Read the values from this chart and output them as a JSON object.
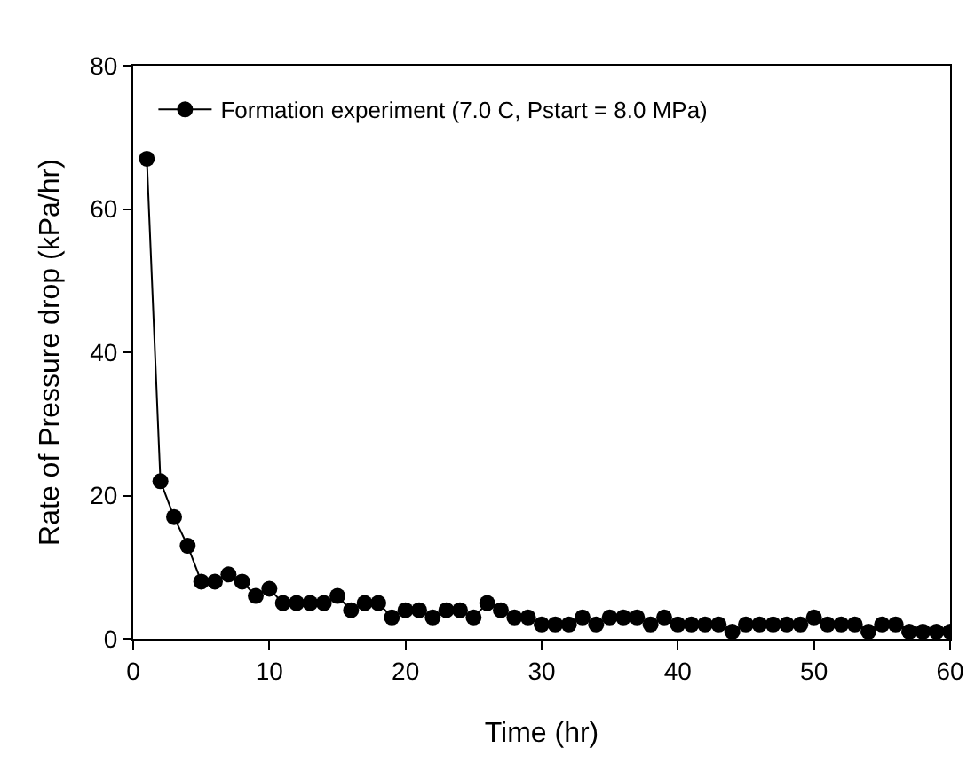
{
  "chart_data": {
    "type": "line",
    "xlabel": "Time (hr)",
    "ylabel": "Rate of Pressure drop (kPa/hr)",
    "x": [
      1,
      2,
      3,
      4,
      5,
      6,
      7,
      8,
      9,
      10,
      11,
      12,
      13,
      14,
      15,
      16,
      17,
      18,
      19,
      20,
      21,
      22,
      23,
      24,
      25,
      26,
      27,
      28,
      29,
      30,
      31,
      32,
      33,
      34,
      35,
      36,
      37,
      38,
      39,
      40,
      41,
      42,
      43,
      44,
      45,
      46,
      47,
      48,
      49,
      50,
      51,
      52,
      53,
      54,
      55,
      56,
      57,
      58,
      59,
      60
    ],
    "series": [
      {
        "name": "Formation experiment (7.0 C, Pstart = 8.0 MPa)",
        "color": "#000000",
        "values": [
          67,
          22,
          17,
          13,
          8,
          8,
          9,
          8,
          6,
          7,
          5,
          5,
          5,
          5,
          6,
          4,
          5,
          5,
          3,
          4,
          4,
          3,
          4,
          4,
          3,
          5,
          4,
          3,
          3,
          2,
          2,
          2,
          3,
          2,
          3,
          3,
          3,
          2,
          3,
          2,
          2,
          2,
          2,
          1,
          2,
          2,
          2,
          2,
          2,
          3,
          2,
          2,
          2,
          1,
          2,
          2,
          1,
          1,
          1,
          1
        ]
      }
    ],
    "xlim": [
      0,
      60
    ],
    "xticks": [
      0,
      10,
      20,
      30,
      40,
      50,
      60
    ],
    "ylim": [
      0,
      80
    ],
    "yticks": [
      0,
      20,
      40,
      60,
      80
    ],
    "grid": false,
    "legend": "top left",
    "marker": "circle",
    "line_style": "solid"
  }
}
